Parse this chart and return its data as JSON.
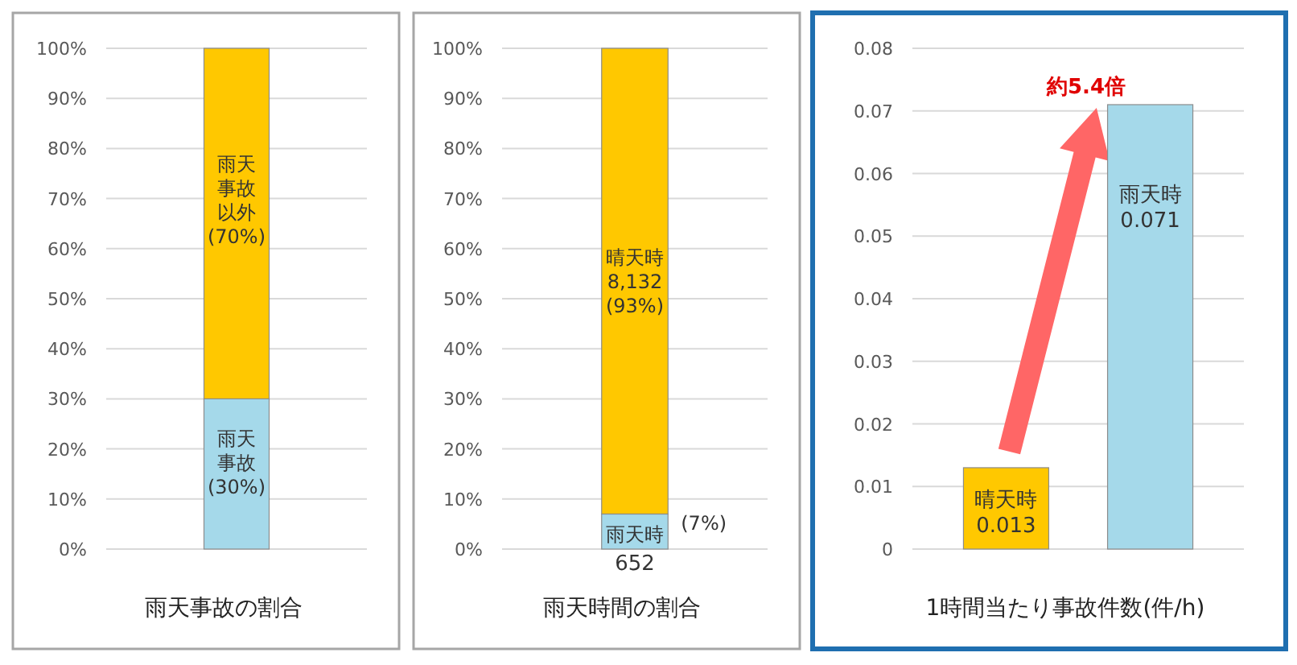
{
  "chart_data": [
    {
      "type": "bar",
      "stacked": true,
      "categories": [
        null
      ],
      "xlabel": "雨天事故の割合",
      "ylim": [
        0,
        100
      ],
      "yticks": [
        {
          "value": 0,
          "label": "0%"
        },
        {
          "value": 10,
          "label": "10%"
        },
        {
          "value": 20,
          "label": "20%"
        },
        {
          "value": 30,
          "label": "30%"
        },
        {
          "value": 40,
          "label": "40%"
        },
        {
          "value": 50,
          "label": "50%"
        },
        {
          "value": 60,
          "label": "60%"
        },
        {
          "value": 70,
          "label": "70%"
        },
        {
          "value": 80,
          "label": "80%"
        },
        {
          "value": 90,
          "label": "90%"
        },
        {
          "value": 100,
          "label": "100%"
        }
      ],
      "grid": "y",
      "series": [
        {
          "name": "雨天事故",
          "color": "#a5d9ea",
          "values": [
            30
          ],
          "value_labels": [
            "(30%)"
          ]
        },
        {
          "name": "雨天事故以外",
          "color": "#ffc800",
          "values": [
            70
          ],
          "value_labels": [
            "(70%)"
          ]
        }
      ]
    },
    {
      "type": "bar",
      "stacked": true,
      "categories": [
        null
      ],
      "xlabel": "雨天時間の割合",
      "ylim": [
        0,
        100
      ],
      "yticks": [
        {
          "value": 0,
          "label": "0%"
        },
        {
          "value": 10,
          "label": "10%"
        },
        {
          "value": 20,
          "label": "20%"
        },
        {
          "value": 30,
          "label": "30%"
        },
        {
          "value": 40,
          "label": "40%"
        },
        {
          "value": 50,
          "label": "50%"
        },
        {
          "value": 60,
          "label": "60%"
        },
        {
          "value": 70,
          "label": "70%"
        },
        {
          "value": 80,
          "label": "80%"
        },
        {
          "value": 90,
          "label": "90%"
        },
        {
          "value": 100,
          "label": "100%"
        }
      ],
      "grid": "y",
      "series": [
        {
          "name": "雨天時",
          "color": "#a5d9ea",
          "values": [
            7
          ],
          "value_labels": [
            "652\n(7%)"
          ]
        },
        {
          "name": "晴天時",
          "color": "#ffc800",
          "values": [
            93
          ],
          "value_labels": [
            "8,132\n(93%)"
          ]
        }
      ]
    },
    {
      "type": "bar",
      "categories": [
        "晴天時",
        "雨天時"
      ],
      "values": [
        0.013,
        0.071
      ],
      "colors": [
        "#ffc800",
        "#a5d9ea"
      ],
      "data_labels": true,
      "xlabel": "1時間当たり事故件数(件/h)",
      "ylim": [
        0,
        0.08
      ],
      "yticks": [
        0,
        0.01,
        0.02,
        0.03,
        0.04,
        0.05,
        0.06,
        0.07,
        0.08
      ],
      "grid": "y",
      "annotations": [
        "約5.4倍"
      ]
    }
  ]
}
